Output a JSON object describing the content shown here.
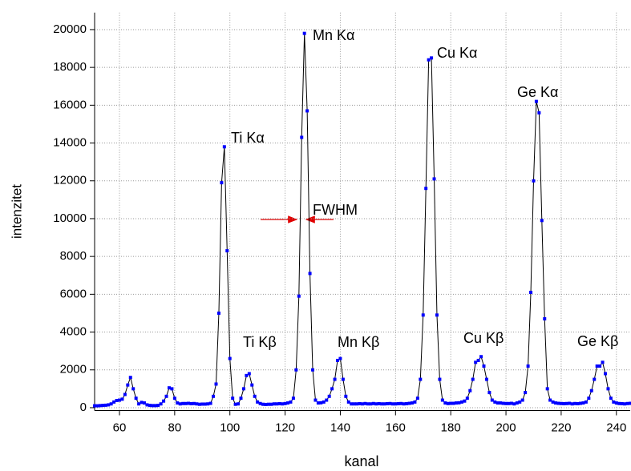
{
  "chart_data": {
    "type": "line",
    "xlabel": "kanal",
    "ylabel": "intenzitet",
    "x": [
      51,
      52,
      53,
      54,
      55,
      56,
      57,
      58,
      59,
      60,
      61,
      62,
      63,
      64,
      65,
      66,
      67,
      68,
      69,
      70,
      71,
      72,
      73,
      74,
      75,
      76,
      77,
      78,
      79,
      80,
      81,
      82,
      83,
      84,
      85,
      86,
      87,
      88,
      89,
      90,
      91,
      92,
      93,
      94,
      95,
      96,
      97,
      98,
      99,
      100,
      101,
      102,
      103,
      104,
      105,
      106,
      107,
      108,
      109,
      110,
      111,
      112,
      113,
      114,
      115,
      116,
      117,
      118,
      119,
      120,
      121,
      122,
      123,
      124,
      125,
      126,
      127,
      128,
      129,
      130,
      131,
      132,
      133,
      134,
      135,
      136,
      137,
      138,
      139,
      140,
      141,
      142,
      143,
      144,
      145,
      146,
      147,
      148,
      149,
      150,
      151,
      152,
      153,
      154,
      155,
      156,
      157,
      158,
      159,
      160,
      161,
      162,
      163,
      164,
      165,
      166,
      167,
      168,
      169,
      170,
      171,
      172,
      173,
      174,
      175,
      176,
      177,
      178,
      179,
      180,
      181,
      182,
      183,
      184,
      185,
      186,
      187,
      188,
      189,
      190,
      191,
      192,
      193,
      194,
      195,
      196,
      197,
      198,
      199,
      200,
      201,
      202,
      203,
      204,
      205,
      206,
      207,
      208,
      209,
      210,
      211,
      212,
      213,
      214,
      215,
      216,
      217,
      218,
      219,
      220,
      221,
      222,
      223,
      224,
      225,
      226,
      227,
      228,
      229,
      230,
      231,
      232,
      233,
      234,
      235,
      236,
      237,
      238,
      239,
      240,
      241,
      242,
      243,
      244,
      245
    ],
    "series": [
      {
        "color": "#0000ff",
        "values": [
          100,
          100,
          110,
          120,
          130,
          150,
          200,
          300,
          380,
          400,
          450,
          700,
          1200,
          1600,
          1000,
          500,
          200,
          280,
          250,
          150,
          120,
          110,
          110,
          120,
          200,
          350,
          600,
          1050,
          1000,
          500,
          250,
          200,
          220,
          220,
          230,
          210,
          220,
          200,
          180,
          190,
          190,
          200,
          230,
          600,
          1250,
          5000,
          11900,
          13800,
          8300,
          2600,
          500,
          180,
          200,
          500,
          1000,
          1700,
          1800,
          1200,
          600,
          300,
          220,
          180,
          170,
          180,
          180,
          200,
          200,
          210,
          200,
          220,
          250,
          300,
          500,
          2000,
          5900,
          14300,
          19800,
          15700,
          7100,
          2000,
          400,
          250,
          260,
          300,
          400,
          600,
          1000,
          1500,
          2500,
          2600,
          1500,
          600,
          300,
          200,
          200,
          200,
          210,
          200,
          220,
          200,
          200,
          220,
          200,
          210,
          200,
          200,
          210,
          220,
          200,
          200,
          210,
          220,
          200,
          210,
          230,
          250,
          300,
          500,
          1500,
          4900,
          11600,
          18400,
          18500,
          12100,
          4900,
          1500,
          400,
          250,
          220,
          230,
          230,
          250,
          260,
          300,
          350,
          500,
          900,
          1500,
          2400,
          2500,
          2700,
          2200,
          1500,
          800,
          400,
          300,
          250,
          250,
          230,
          220,
          220,
          230,
          200,
          250,
          300,
          400,
          800,
          2200,
          6100,
          12000,
          16200,
          15600,
          9900,
          4700,
          1000,
          400,
          300,
          250,
          230,
          220,
          210,
          220,
          230,
          200,
          220,
          210,
          230,
          250,
          300,
          500,
          900,
          1500,
          2200,
          2200,
          2400,
          1800,
          1000,
          500,
          300,
          250,
          220,
          210,
          200,
          220,
          230
        ]
      }
    ],
    "line_color": "#000000",
    "xlim": [
      51,
      245
    ],
    "ylim": [
      -150,
      20900
    ],
    "xticks": [
      60,
      80,
      100,
      120,
      140,
      160,
      180,
      200,
      220,
      240
    ],
    "yticks": [
      0,
      2000,
      4000,
      6000,
      8000,
      10000,
      12000,
      14000,
      16000,
      18000,
      20000
    ],
    "grid": true,
    "annotations": [
      "Ti Kα",
      "Mn Kα",
      "Cu Kα",
      "Ge Kα",
      "FWHM",
      "Ti Kβ",
      "Mn Kβ",
      "Cu Kβ",
      "Ge Kβ"
    ]
  }
}
